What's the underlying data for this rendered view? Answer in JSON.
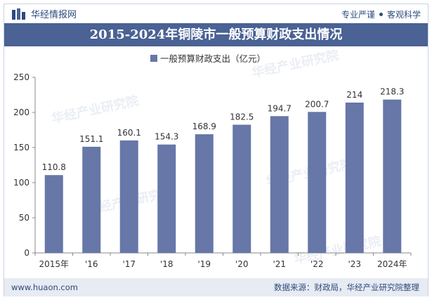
{
  "header": {
    "brand_name": "华经情报网",
    "slogan_left": "专业严谨",
    "slogan_right": "客观科学"
  },
  "title": "2015-2024年铜陵市一般预算财政支出情况",
  "footer": {
    "url": "www.huaon.com",
    "source": "数据来源：财政局，华经产业研究院整理"
  },
  "colors": {
    "bar": "#6677a8",
    "title_bg": "#4a6294",
    "brand": "#2e4a7d",
    "footer_bg": "#e7ebf2"
  },
  "chart_data": {
    "type": "bar",
    "categories": [
      "2015年",
      "'16",
      "'17",
      "'18",
      "'19",
      "'20",
      "'21",
      "'22",
      "'23",
      "2024年"
    ],
    "series": [
      {
        "name": "一般预算财政支出（亿元）",
        "values": [
          110.8,
          151.1,
          160.1,
          154.3,
          168.9,
          182.5,
          194.7,
          200.7,
          214,
          218.3
        ]
      }
    ],
    "data_labels": [
      "110.8",
      "151.1",
      "160.1",
      "154.3",
      "168.9",
      "182.5",
      "194.7",
      "200.7",
      "214",
      "218.3"
    ],
    "ylim": [
      0,
      250
    ],
    "yticks": [
      0,
      50,
      100,
      150,
      200,
      250
    ],
    "legend_position": "top-center",
    "grid": false
  }
}
